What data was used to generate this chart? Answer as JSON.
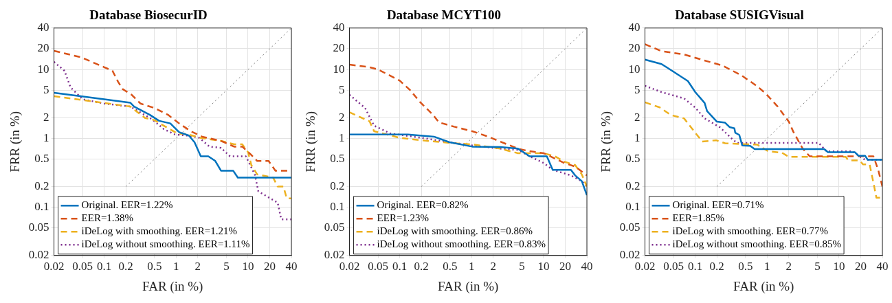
{
  "chart_data": [
    {
      "type": "line",
      "title": "Database BiosecurID",
      "xlabel": "FAR (in %)",
      "ylabel": "FRR (in %)",
      "xlim": [
        0.02,
        40
      ],
      "ylim": [
        0.02,
        40
      ],
      "xticks": [
        0.02,
        0.05,
        0.1,
        0.2,
        0.5,
        1,
        2,
        5,
        10,
        20,
        40
      ],
      "yticks": [
        0.02,
        0.05,
        0.1,
        0.2,
        0.5,
        1,
        2,
        5,
        10,
        20,
        40
      ],
      "log": "xy",
      "grid": true,
      "legend": "bottom left",
      "series": [
        {
          "name": "Original. EER=1.22%",
          "color": "#0072bd",
          "line_style": "solid",
          "x": [
            0.02,
            0.1,
            0.23,
            0.26,
            0.43,
            0.58,
            0.83,
            1.1,
            1.5,
            1.8,
            2.2,
            2.8,
            3.5,
            4.2,
            6.2,
            7.2,
            40
          ],
          "values": [
            4.6,
            3.7,
            3.3,
            2.9,
            2.2,
            1.8,
            1.65,
            1.23,
            1.1,
            0.88,
            0.55,
            0.55,
            0.47,
            0.34,
            0.34,
            0.27,
            0.27
          ]
        },
        {
          "name": "EER=1.38%",
          "color": "#d95319",
          "line_style": "dashed",
          "x": [
            0.02,
            0.048,
            0.1,
            0.13,
            0.155,
            0.18,
            0.24,
            0.32,
            0.5,
            0.77,
            1.1,
            1.6,
            2.3,
            4.2,
            6.4,
            8.3,
            10.8,
            13.4,
            19.3,
            24,
            40
          ],
          "values": [
            18.7,
            15,
            10.8,
            9.6,
            6.7,
            5.2,
            4.3,
            3.2,
            2.76,
            2.2,
            1.65,
            1.27,
            1.06,
            0.92,
            0.76,
            0.76,
            0.59,
            0.47,
            0.47,
            0.34,
            0.34
          ]
        },
        {
          "name": "iDeLog with smoothing. EER=1.21%",
          "color": "#edb120",
          "line_style": "dashed",
          "x": [
            0.02,
            0.05,
            0.23,
            0.37,
            0.5,
            0.67,
            1.04,
            1.4,
            2.15,
            4.2,
            6.4,
            8.3,
            10,
            11.1,
            13.4,
            22.3,
            25.8,
            31,
            34.5,
            40
          ],
          "values": [
            4.1,
            3.6,
            2.9,
            1.98,
            1.84,
            1.53,
            1.18,
            1.16,
            1.02,
            0.92,
            0.82,
            0.82,
            0.63,
            0.41,
            0.3,
            0.27,
            0.2,
            0.2,
            0.135,
            0.135
          ]
        },
        {
          "name": "iDeLog without smoothing. EER=1.11%",
          "color": "#7e2f8e",
          "line_style": "dotted",
          "x": [
            0.02,
            0.028,
            0.034,
            0.05,
            0.1,
            0.23,
            0.46,
            0.67,
            0.96,
            1.4,
            2.1,
            2.9,
            4.2,
            5.6,
            9.3,
            12.4,
            13.9,
            25.8,
            28.9,
            40
          ],
          "values": [
            12.9,
            9.6,
            5.5,
            3.7,
            3.2,
            2.9,
            1.9,
            1.37,
            1.14,
            1.1,
            1.02,
            0.76,
            0.73,
            0.55,
            0.55,
            0.3,
            0.17,
            0.117,
            0.067,
            0.067
          ]
        },
        {
          "type": "line",
          "color": "#808080",
          "line_style": "dotted",
          "x": [
            0.2,
            40
          ],
          "values": [
            0.2,
            40
          ]
        }
      ]
    },
    {
      "type": "line",
      "title": "Database MCYT100",
      "xlabel": "FAR (in %)",
      "ylabel": "FRR (in %)",
      "xlim": [
        0.02,
        40
      ],
      "ylim": [
        0.02,
        40
      ],
      "xticks": [
        0.02,
        0.05,
        0.1,
        0.2,
        0.5,
        1,
        2,
        5,
        10,
        20,
        40
      ],
      "yticks": [
        0.02,
        0.05,
        0.1,
        0.2,
        0.5,
        1,
        2,
        5,
        10,
        20,
        40
      ],
      "log": "xy",
      "grid": true,
      "legend": "bottom left",
      "series": [
        {
          "name": "Original. EER=0.82%",
          "color": "#0072bd",
          "line_style": "solid",
          "x": [
            0.02,
            0.13,
            0.3,
            0.49,
            1.02,
            2.5,
            4.4,
            6.4,
            11.1,
            13.4,
            24,
            27.5,
            34,
            40
          ],
          "values": [
            1.14,
            1.14,
            1.06,
            0.88,
            0.76,
            0.75,
            0.71,
            0.55,
            0.55,
            0.35,
            0.35,
            0.29,
            0.24,
            0.15
          ]
        },
        {
          "name": "EER=1.23%",
          "color": "#d95319",
          "line_style": "dashed",
          "x": [
            0.02,
            0.038,
            0.05,
            0.1,
            0.14,
            0.19,
            0.29,
            0.35,
            0.57,
            1.02,
            1.7,
            2.85,
            4.4,
            5.98,
            10,
            14.4,
            19.3,
            27.5,
            40
          ],
          "values": [
            11.8,
            10.8,
            10,
            6.9,
            5,
            3.4,
            2.2,
            1.71,
            1.48,
            1.27,
            1.06,
            0.85,
            0.71,
            0.66,
            0.61,
            0.51,
            0.44,
            0.39,
            0.29
          ]
        },
        {
          "name": "iDeLog with smoothing. EER=0.86%",
          "color": "#edb120",
          "line_style": "dashed",
          "x": [
            0.02,
            0.038,
            0.044,
            0.1,
            0.24,
            0.57,
            1.02,
            2.5,
            4.4,
            10,
            14.4,
            19.3,
            27.5,
            34,
            40
          ],
          "values": [
            2.4,
            1.77,
            1.27,
            1.02,
            0.92,
            0.85,
            0.82,
            0.71,
            0.61,
            0.61,
            0.55,
            0.46,
            0.41,
            0.3,
            0.2
          ]
        },
        {
          "name": "iDeLog without smoothing. EER=0.83%",
          "color": "#7e2f8e",
          "line_style": "dotted",
          "x": [
            0.02,
            0.033,
            0.044,
            0.074,
            0.2,
            0.49,
            1.02,
            2.5,
            4.4,
            6.4,
            10,
            13.4,
            24,
            34,
            40
          ],
          "values": [
            4.3,
            2.76,
            1.53,
            1.18,
            1.02,
            0.88,
            0.79,
            0.71,
            0.68,
            0.55,
            0.44,
            0.35,
            0.29,
            0.24,
            0.2
          ]
        },
        {
          "type": "line",
          "color": "#808080",
          "line_style": "dotted",
          "x": [
            0.2,
            40
          ],
          "values": [
            0.2,
            40
          ]
        }
      ]
    },
    {
      "type": "line",
      "title": "Database SUSIGVisual",
      "xlabel": "FAR (in %)",
      "ylabel": "FRR (in %)",
      "xlim": [
        0.02,
        40
      ],
      "ylim": [
        0.02,
        40
      ],
      "xticks": [
        0.02,
        0.05,
        0.1,
        0.2,
        0.5,
        1,
        2,
        5,
        10,
        20,
        40
      ],
      "yticks": [
        0.02,
        0.05,
        0.1,
        0.2,
        0.5,
        1,
        2,
        5,
        10,
        20,
        40
      ],
      "log": "xy",
      "grid": true,
      "legend": "bottom left",
      "series": [
        {
          "name": "Original. EER=0.71%",
          "color": "#0072bd",
          "line_style": "solid",
          "x": [
            0.02,
            0.034,
            0.046,
            0.079,
            0.1,
            0.135,
            0.146,
            0.2,
            0.26,
            0.3,
            0.35,
            0.36,
            0.41,
            0.45,
            0.58,
            0.67,
            6.2,
            7,
            16.6,
            18.6,
            23,
            25,
            40
          ],
          "values": [
            13.9,
            12,
            9.8,
            6.8,
            4.7,
            3.27,
            2.5,
            1.75,
            1.69,
            1.46,
            1.4,
            1.21,
            1.12,
            0.79,
            0.78,
            0.7,
            0.7,
            0.63,
            0.63,
            0.56,
            0.56,
            0.49,
            0.49
          ]
        },
        {
          "name": "EER=1.85%",
          "color": "#d95319",
          "line_style": "dashed",
          "x": [
            0.02,
            0.034,
            0.07,
            0.146,
            0.24,
            0.44,
            0.73,
            0.97,
            1.4,
            2,
            2.3,
            3.1,
            3.9,
            30,
            35,
            40
          ],
          "values": [
            23.3,
            18.5,
            16.5,
            13.2,
            11.4,
            8.2,
            5.7,
            4.4,
            2.9,
            1.75,
            1.26,
            0.72,
            0.55,
            0.55,
            0.35,
            0.2
          ]
        },
        {
          "name": "iDeLog with smoothing. EER=0.77%",
          "color": "#edb120",
          "line_style": "dashed",
          "x": [
            0.02,
            0.032,
            0.046,
            0.07,
            0.1,
            0.125,
            0.195,
            0.26,
            0.73,
            1.04,
            1.6,
            2,
            12.4,
            13.4,
            19.3,
            21.5,
            26.6,
            30.8,
            33,
            40
          ],
          "values": [
            3.34,
            2.82,
            2.18,
            1.95,
            1.21,
            0.9,
            0.94,
            0.85,
            0.81,
            0.65,
            0.62,
            0.54,
            0.54,
            0.48,
            0.48,
            0.42,
            0.42,
            0.2,
            0.138,
            0.138
          ]
        },
        {
          "name": "iDeLog without smoothing. EER=0.85%",
          "color": "#7e2f8e",
          "line_style": "dotted",
          "x": [
            0.02,
            0.034,
            0.07,
            0.1,
            0.135,
            0.22,
            0.33,
            0.38,
            5.2,
            6.7,
            15.5,
            18.6,
            23,
            40
          ],
          "values": [
            5.8,
            4.7,
            3.8,
            2.8,
            1.95,
            1.45,
            0.97,
            0.86,
            0.86,
            0.65,
            0.65,
            0.56,
            0.49,
            0.49
          ]
        },
        {
          "type": "line",
          "color": "#808080",
          "line_style": "dotted",
          "x": [
            0.2,
            40
          ],
          "values": [
            0.2,
            40
          ]
        }
      ]
    }
  ]
}
